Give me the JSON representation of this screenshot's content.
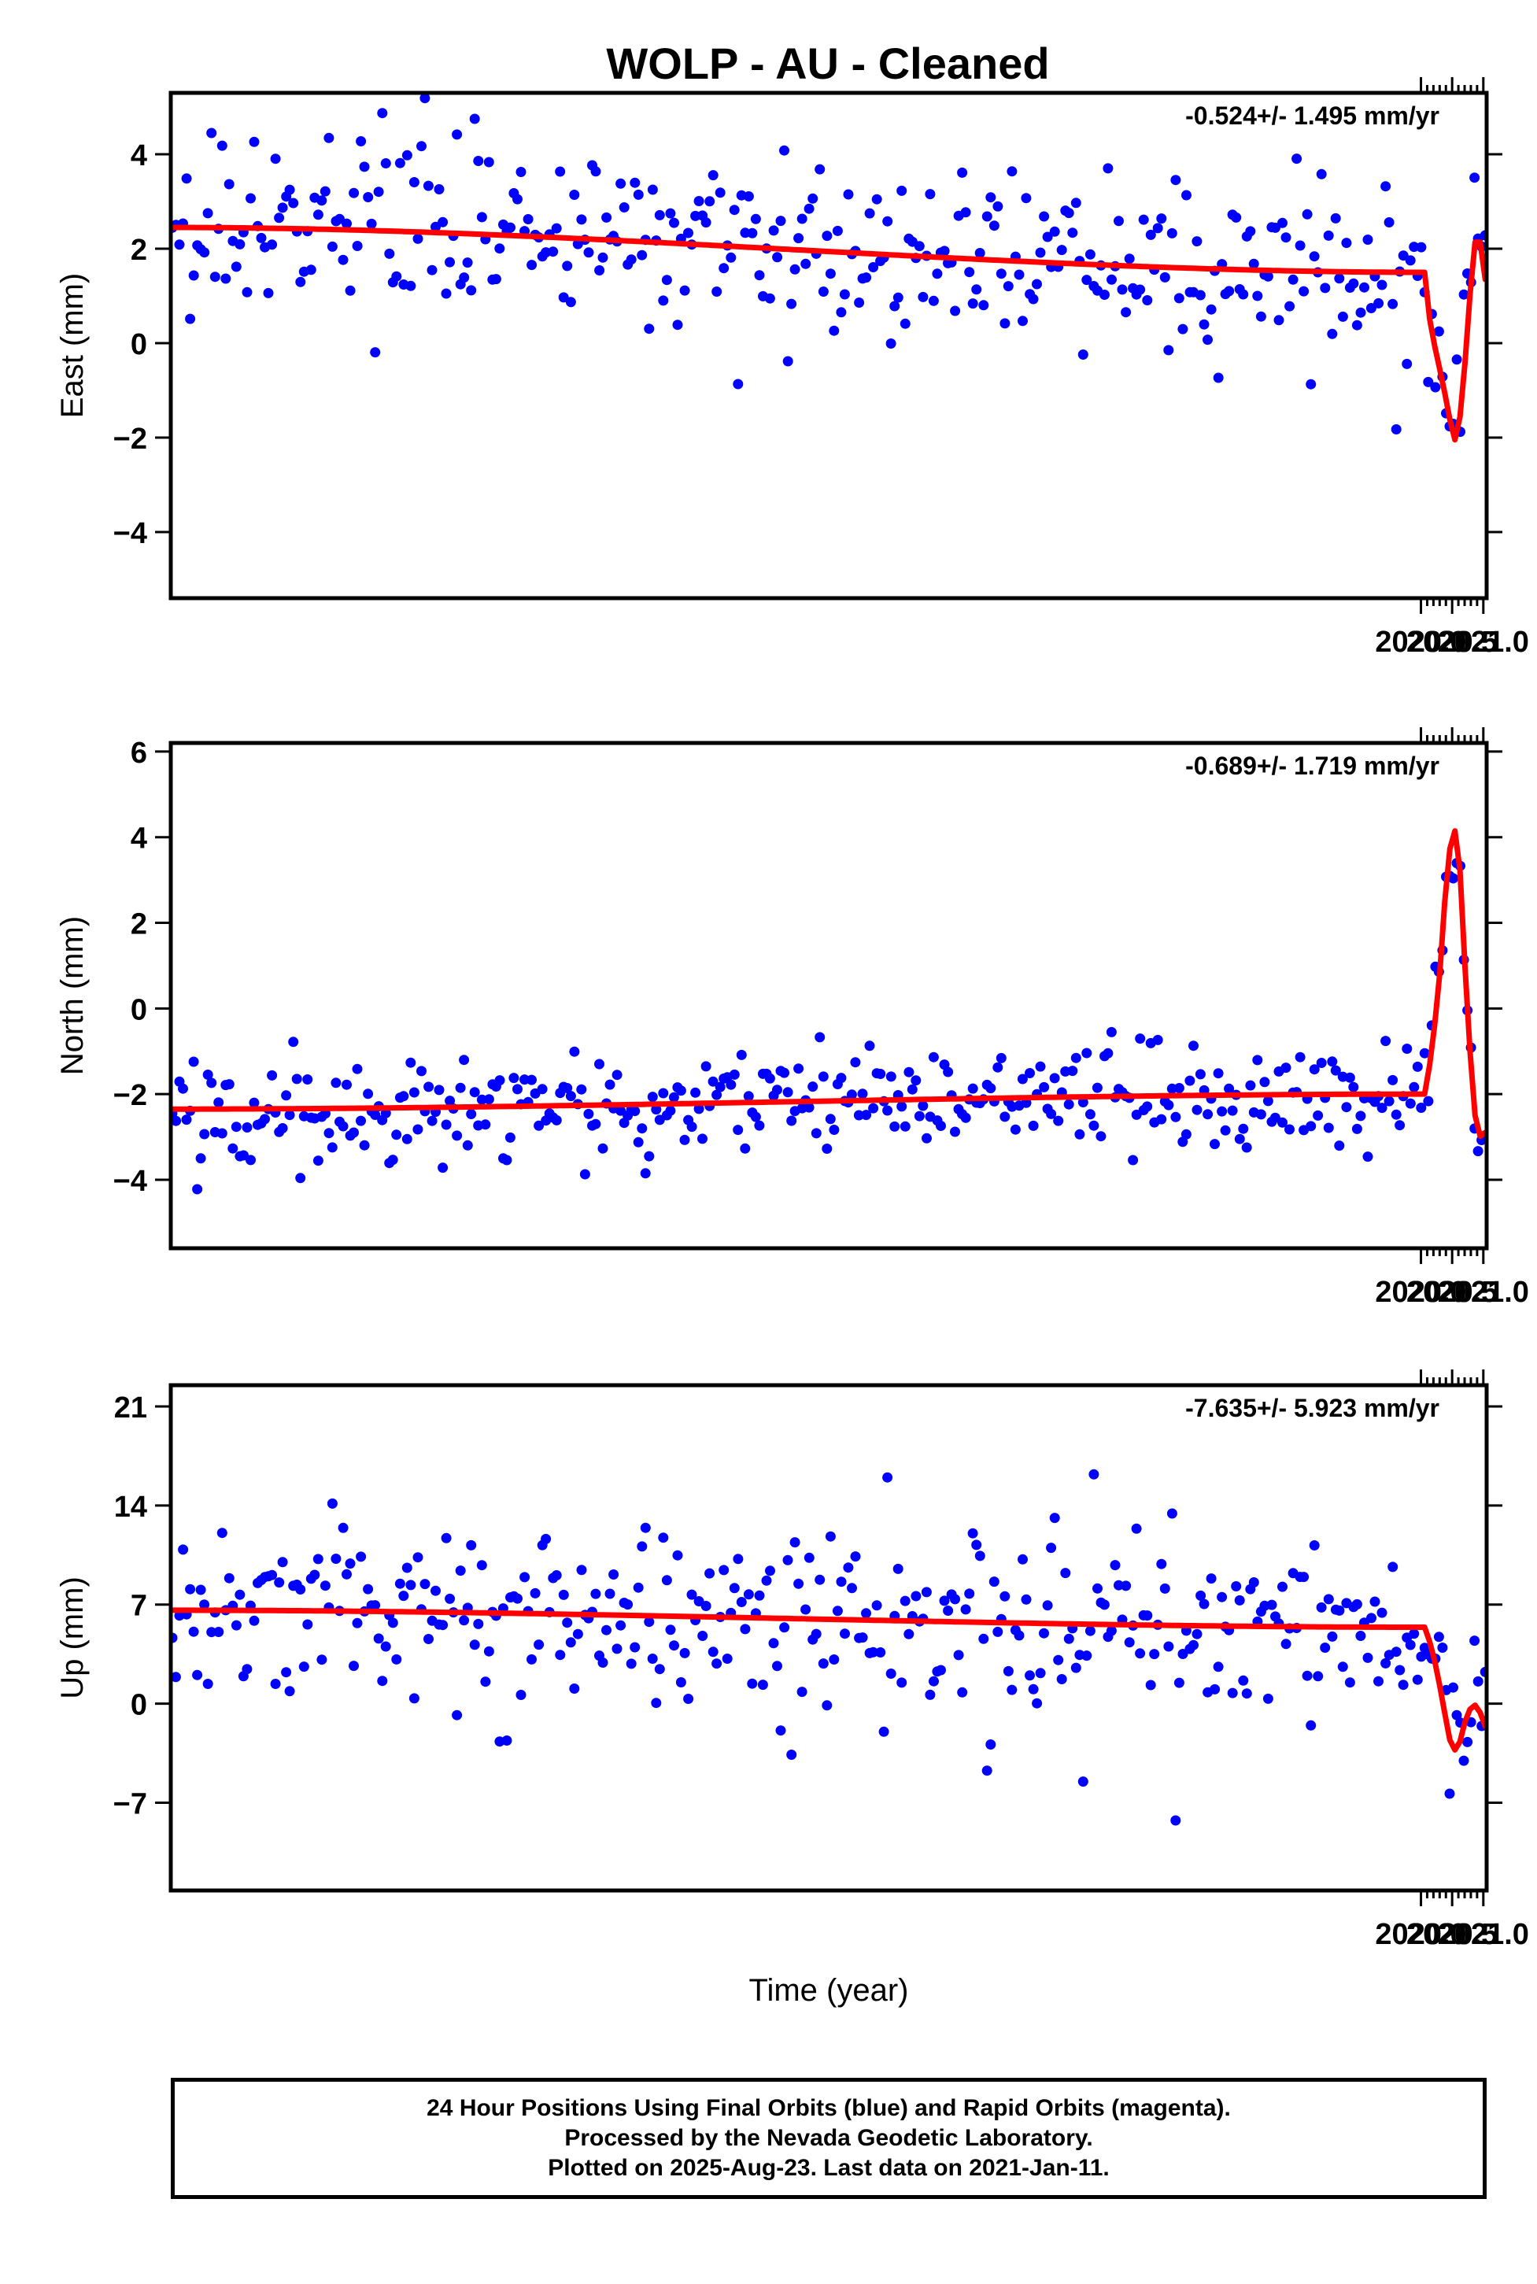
{
  "title": "WOLP  - AU - Cleaned",
  "footer": {
    "line1": "24 Hour Positions Using Final Orbits (blue) and Rapid Orbits (magenta).",
    "line2": "Processed by the Nevada Geodetic Laboratory.",
    "line3": "Plotted on 2025-Aug-23. Last data on 2021-Jan-11."
  },
  "colors": {
    "data_points": "#0000ff",
    "fit_line": "#ff0000"
  },
  "chart_data": [
    {
      "type": "scatter",
      "component": "east",
      "ylabel": "East (mm)",
      "xlabel": "",
      "rate_label": "-0.524+/- 1.495 mm/yr",
      "xlim": [
        1999.955,
        2021.053
      ],
      "ylim": [
        -5.4,
        5.3
      ],
      "xticks": [
        2020.0,
        2020.5,
        2021.0
      ],
      "xtick_labels": [
        "2020.0",
        "2020.5",
        "2021.0"
      ],
      "xminor": [
        2020.1,
        2020.2,
        2020.3,
        2020.4,
        2020.6,
        2020.7,
        2020.8,
        2020.9
      ],
      "yticks": [
        -4,
        -2,
        0,
        2,
        4
      ],
      "ytick_labels": [
        "−4",
        "−2",
        "0",
        "2",
        "4"
      ],
      "fit_knots": {
        "x": [
          1999.98,
          2020.06,
          2020.12,
          2020.2,
          2020.3,
          2020.4,
          2020.5,
          2020.54,
          2020.6,
          2020.66,
          2020.7,
          2020.76,
          2020.82,
          2020.88,
          2020.92,
          2020.96,
          2021.0,
          2021.03
        ],
        "y": [
          2.45,
          1.5,
          0.6,
          0.0,
          -0.55,
          -1.1,
          -1.85,
          -2.05,
          -1.85,
          -1.1,
          -0.45,
          0.6,
          1.6,
          2.2,
          2.3,
          2.1,
          1.7,
          1.35
        ]
      },
      "noise_sd": 1.15,
      "points": 370
    },
    {
      "type": "scatter",
      "component": "north",
      "ylabel": "North (mm)",
      "xlabel": "",
      "rate_label": "-0.689+/- 1.719 mm/yr",
      "xlim": [
        1999.955,
        2021.053
      ],
      "ylim": [
        -5.6,
        6.2
      ],
      "xticks": [
        2020.0,
        2020.5,
        2021.0
      ],
      "xtick_labels": [
        "2020.0",
        "2020.5",
        "2021.0"
      ],
      "xminor": [
        2020.1,
        2020.2,
        2020.3,
        2020.4,
        2020.6,
        2020.7,
        2020.8,
        2020.9
      ],
      "yticks": [
        -4,
        -2,
        0,
        2,
        4,
        6
      ],
      "ytick_labels": [
        "−4",
        "−2",
        "0",
        "2",
        "4",
        "6"
      ],
      "fit_knots": {
        "x": [
          1999.98,
          2020.06,
          2020.12,
          2020.2,
          2020.28,
          2020.35,
          2020.42,
          2020.5,
          2020.54,
          2020.6,
          2020.66,
          2020.72,
          2020.78,
          2020.84,
          2020.9,
          2020.96,
          2021.0,
          2021.03
        ],
        "y": [
          -2.35,
          -2.0,
          -1.45,
          -0.55,
          0.5,
          1.9,
          3.25,
          4.1,
          4.15,
          3.75,
          2.4,
          0.75,
          -0.95,
          -2.25,
          -2.8,
          -3.0,
          -3.0,
          -2.9
        ]
      },
      "noise_sd": 0.85,
      "points": 370
    },
    {
      "type": "scatter",
      "component": "up",
      "ylabel": "Up (mm)",
      "xlabel": "Time (year)",
      "rate_label": "-7.635+/- 5.923 mm/yr",
      "xlim": [
        1999.955,
        2021.053
      ],
      "ylim": [
        -13.2,
        22.5
      ],
      "xticks": [
        2020.0,
        2020.5,
        2021.0
      ],
      "xtick_labels": [
        "2020.0",
        "2020.5",
        "2021.0"
      ],
      "xminor": [
        2020.1,
        2020.2,
        2020.3,
        2020.4,
        2020.6,
        2020.7,
        2020.8,
        2020.9
      ],
      "yticks": [
        -7,
        0,
        7,
        14,
        21
      ],
      "ytick_labels": [
        "−7",
        "0",
        "7",
        "14",
        "21"
      ],
      "fit_knots": {
        "x": [
          1999.98,
          2020.08,
          2020.18,
          2020.28,
          2020.36,
          2020.44,
          2020.5,
          2020.56,
          2020.62,
          2020.7,
          2020.78,
          2020.86,
          2020.92,
          2020.98,
          2021.03
        ],
        "y": [
          6.6,
          5.4,
          3.8,
          1.6,
          -0.3,
          -2.3,
          -3.1,
          -3.3,
          -2.7,
          -1.3,
          -0.4,
          -0.1,
          -0.3,
          -1.0,
          -1.6
        ]
      },
      "noise_sd": 4.2,
      "points": 370
    }
  ]
}
